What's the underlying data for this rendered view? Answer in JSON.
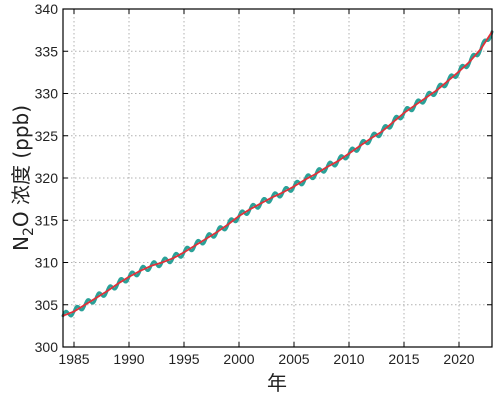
{
  "chart_data": {
    "type": "line",
    "title": "",
    "xlabel": "年",
    "ylabel": {
      "prefix": "N",
      "subscript": "2",
      "suffix": "O 浓度 (ppb)"
    },
    "xlim": [
      1984,
      2023
    ],
    "ylim": [
      300,
      340
    ],
    "x_ticks": [
      1985,
      1990,
      1995,
      2000,
      2005,
      2010,
      2015,
      2020
    ],
    "y_ticks": [
      300,
      305,
      310,
      315,
      320,
      325,
      330,
      335,
      340
    ],
    "x_tick_labels": [
      "1985",
      "1990",
      "1995",
      "2000",
      "2005",
      "2010",
      "2015",
      "2020"
    ],
    "y_tick_labels": [
      "300",
      "305",
      "310",
      "315",
      "320",
      "325",
      "330",
      "335",
      "340"
    ],
    "grid": true,
    "series": [
      {
        "style": "monthly (seasonal cycle)",
        "color": "#2aa198",
        "seasonal_amplitude": 0.4,
        "x": [
          1984,
          1985,
          1986,
          1987,
          1988,
          1989,
          1990,
          1991,
          1992,
          1993,
          1994,
          1995,
          1996,
          1997,
          1998,
          1999,
          2000,
          2001,
          2002,
          2003,
          2004,
          2005,
          2006,
          2007,
          2008,
          2009,
          2010,
          2011,
          2012,
          2013,
          2014,
          2015,
          2016,
          2017,
          2018,
          2019,
          2020,
          2021,
          2022,
          2023
        ],
        "y": [
          303.7,
          304.2,
          305.0,
          305.8,
          306.6,
          307.5,
          308.3,
          309.0,
          309.6,
          310.0,
          310.5,
          311.2,
          312.0,
          312.8,
          313.6,
          314.5,
          315.5,
          316.3,
          317.0,
          317.7,
          318.3,
          319.0,
          319.8,
          320.5,
          321.3,
          322.0,
          322.9,
          323.8,
          324.7,
          325.5,
          326.6,
          327.7,
          328.6,
          329.5,
          330.4,
          331.5,
          332.6,
          333.8,
          335.3,
          337.3
        ]
      },
      {
        "style": "trend",
        "color": "#e0313a",
        "x": [
          1984,
          1985,
          1986,
          1987,
          1988,
          1989,
          1990,
          1991,
          1992,
          1993,
          1994,
          1995,
          1996,
          1997,
          1998,
          1999,
          2000,
          2001,
          2002,
          2003,
          2004,
          2005,
          2006,
          2007,
          2008,
          2009,
          2010,
          2011,
          2012,
          2013,
          2014,
          2015,
          2016,
          2017,
          2018,
          2019,
          2020,
          2021,
          2022,
          2023
        ],
        "y": [
          303.7,
          304.2,
          305.0,
          305.8,
          306.6,
          307.5,
          308.3,
          309.0,
          309.6,
          310.0,
          310.5,
          311.2,
          312.0,
          312.8,
          313.6,
          314.5,
          315.5,
          316.3,
          317.0,
          317.7,
          318.3,
          319.0,
          319.8,
          320.5,
          321.3,
          322.0,
          322.9,
          323.8,
          324.7,
          325.5,
          326.6,
          327.7,
          328.6,
          329.5,
          330.4,
          331.5,
          332.6,
          333.8,
          335.3,
          337.3
        ]
      }
    ]
  }
}
